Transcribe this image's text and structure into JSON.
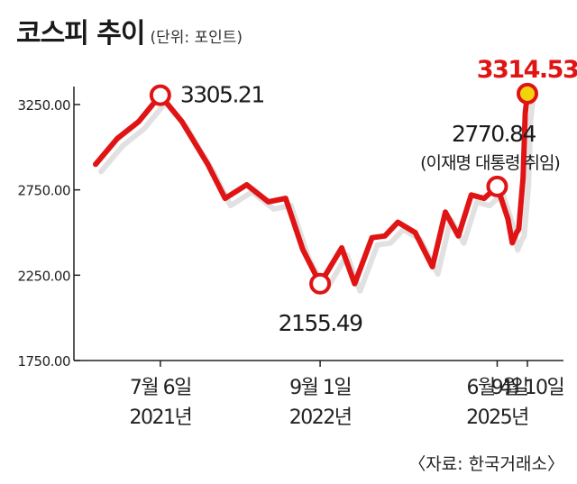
{
  "header": {
    "title": "코스피 추이",
    "unit": "(단위: 포인트)"
  },
  "source": "〈자료: 한국거래소〉",
  "colors": {
    "line": "#e01414",
    "shadow": "#c8c8c8",
    "marker_fill": "#ffffff",
    "last_marker_fill": "#f2d40c",
    "highlight_text": "#e01414",
    "axis": "#222222"
  },
  "chart_data": {
    "type": "line",
    "title": "코스피 추이",
    "unit": "(단위: 포인트)",
    "ylim": [
      1750,
      3750
    ],
    "yticks": [
      1750,
      2250,
      2750,
      3250
    ],
    "ytick_labels": [
      "1750.00",
      "2250.00",
      "2750.00",
      "3250.00"
    ],
    "grid": false,
    "series": [
      {
        "values": [
          2900,
          3050,
          3150,
          3305,
          3150,
          2900,
          2700,
          2780,
          2680,
          2700,
          2400,
          2200,
          2410,
          2200,
          2470,
          2480,
          2560,
          2500,
          2300,
          2620,
          2480,
          2720,
          2700,
          2770,
          2580,
          2440,
          2500,
          2520,
          2820,
          3200,
          3314
        ]
      }
    ],
    "x_fractions": [
      0.0,
      0.05,
      0.1,
      0.15,
      0.2,
      0.26,
      0.3,
      0.35,
      0.4,
      0.44,
      0.48,
      0.52,
      0.57,
      0.6,
      0.64,
      0.67,
      0.7,
      0.74,
      0.78,
      0.81,
      0.84,
      0.87,
      0.9,
      0.93,
      0.955,
      0.965,
      0.975,
      0.98,
      0.99,
      0.995,
      1.0
    ],
    "highlights": [
      {
        "date_label": "7월 6일",
        "year_label": "2021년",
        "value_label": "3305.21",
        "index": 3
      },
      {
        "date_label": "9월 1일",
        "year_label": "2022년",
        "value_label": "2155.49",
        "index": 11
      },
      {
        "date_label": "6월 4일",
        "year_label": "2025년",
        "value_label": "2770.84",
        "note": "(이재명 대통령 취임)",
        "index": 23
      },
      {
        "date_label": "9월 10일",
        "year_label": "",
        "value_label": "3314.53",
        "index": 30
      }
    ]
  }
}
